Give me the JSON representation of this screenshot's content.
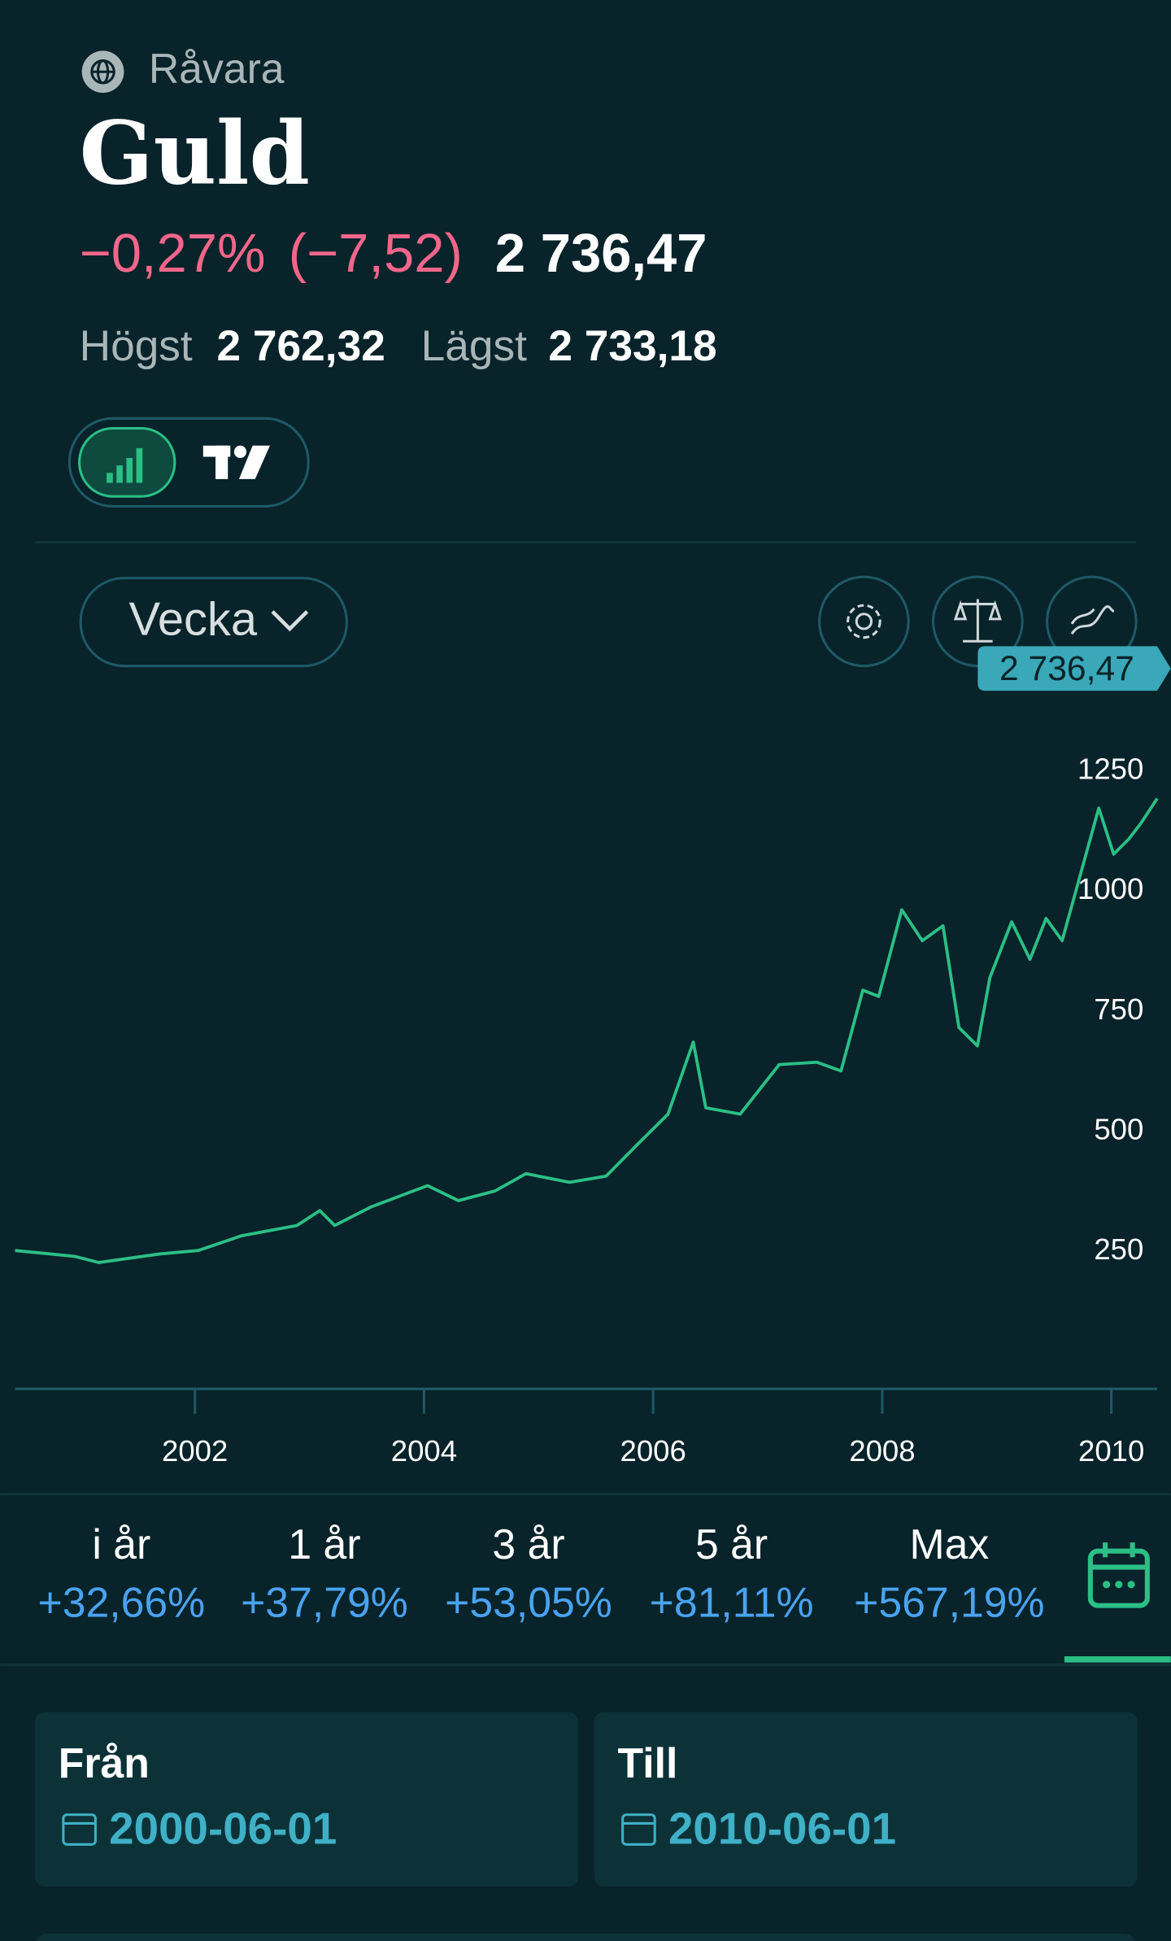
{
  "header": {
    "category": "Råvara",
    "title": "Guld",
    "change_pct": "−0,27%",
    "change_abs": "(−7,52)",
    "price": "2 736,47",
    "high_label": "Högst",
    "high": "2 762,32",
    "low_label": "Lägst",
    "low": "2 733,18"
  },
  "controls": {
    "period": "Vecka"
  },
  "chart_data": {
    "type": "line",
    "price_label": "2 736,47",
    "color": "#2bbf86",
    "x": [
      2000.43,
      2000.95,
      2001.16,
      2001.7,
      2002.03,
      2002.41,
      2002.89,
      2003.09,
      2003.22,
      2003.54,
      2004.03,
      2004.3,
      2004.62,
      2004.89,
      2005.27,
      2005.59,
      2005.86,
      2006.13,
      2006.35,
      2006.46,
      2006.76,
      2007.1,
      2007.43,
      2007.64,
      2007.83,
      2007.97,
      2008.17,
      2008.35,
      2008.53,
      2008.67,
      2008.83,
      2008.94,
      2009.13,
      2009.29,
      2009.43,
      2009.57,
      2009.89,
      2010.02,
      2010.15,
      2010.26,
      2010.4
    ],
    "values": [
      252,
      240,
      227,
      245,
      252,
      283,
      304,
      335,
      304,
      343,
      387,
      356,
      376,
      412,
      394,
      407,
      472,
      536,
      686,
      549,
      536,
      639,
      644,
      626,
      794,
      781,
      961,
      897,
      928,
      716,
      678,
      820,
      936,
      858,
      943,
      897,
      1173,
      1077,
      1108,
      1142,
      1193
    ],
    "xlim": [
      2000.43,
      2010.4
    ],
    "xticks": [
      2002,
      2004,
      2006,
      2008,
      2010
    ],
    "ylim": [
      -36,
      1412
    ],
    "yticks": [
      250,
      500,
      750,
      1000,
      1250
    ],
    "grid": false
  },
  "returns": [
    {
      "period": "i år",
      "change": "+32,66%"
    },
    {
      "period": "1 år",
      "change": "+37,79%"
    },
    {
      "period": "3 år",
      "change": "+53,05%"
    },
    {
      "period": "5 år",
      "change": "+81,11%"
    },
    {
      "period": "Max",
      "change": "+567,19%"
    }
  ],
  "date_range": {
    "from_label": "Från",
    "from": "2000-06-01",
    "to_label": "Till",
    "to": "2010-06-01"
  }
}
